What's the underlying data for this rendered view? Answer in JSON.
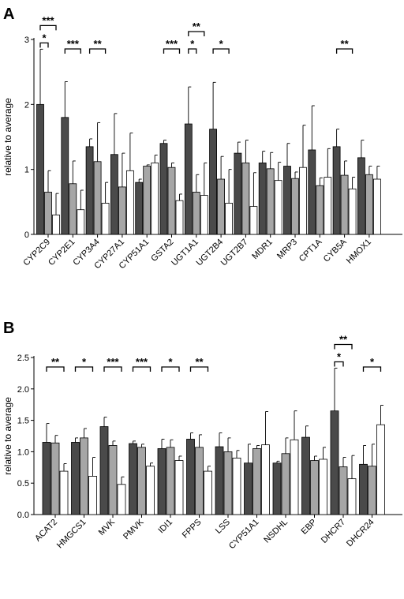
{
  "colors": {
    "series_1": "#4a4a4a",
    "series_2": "#a6a6a6",
    "series_3": "#ffffff",
    "axis": "#000000"
  },
  "chart_data": [
    {
      "type": "bar",
      "panel": "A",
      "ylabel": "relative to average",
      "ylim": [
        0,
        3
      ],
      "yticks": [
        0,
        1,
        2,
        3
      ],
      "grid": false,
      "categories": [
        "CYP2C9",
        "CYP2E1",
        "CYP3A4",
        "CYP27A1",
        "CYP51A1",
        "GSTA2",
        "UGT1A1",
        "UGT2B4",
        "UGT2B7",
        "MDR1",
        "MRP3",
        "CPT1A",
        "CYB5A",
        "HMOX1"
      ],
      "series": [
        {
          "values": [
            2.0,
            1.8,
            1.35,
            1.23,
            0.8,
            1.4,
            1.7,
            1.62,
            1.25,
            1.1,
            1.05,
            1.3,
            1.35,
            1.18
          ],
          "errors": [
            0.85,
            0.55,
            0.12,
            0.63,
            0.05,
            0.05,
            0.57,
            0.72,
            0.17,
            0.18,
            0.35,
            0.68,
            0.27,
            0.27
          ]
        },
        {
          "values": [
            0.65,
            0.78,
            1.12,
            0.73,
            1.05,
            1.03,
            0.65,
            0.85,
            1.1,
            1.01,
            0.86,
            0.75,
            0.91,
            0.92
          ],
          "errors": [
            0.33,
            0.35,
            0.6,
            0.52,
            0.02,
            0.07,
            0.27,
            0.35,
            0.35,
            0.25,
            0.1,
            0.12,
            0.22,
            0.13
          ]
        },
        {
          "values": [
            0.3,
            0.38,
            0.48,
            0.98,
            1.1,
            0.52,
            0.6,
            0.48,
            0.43,
            0.83,
            1.03,
            0.88,
            0.7,
            0.85
          ],
          "errors": [
            0.33,
            0.3,
            0.32,
            0.58,
            0.12,
            0.1,
            0.5,
            0.52,
            0.52,
            0.28,
            0.65,
            0.44,
            0.18,
            0.2
          ]
        }
      ],
      "significance": [
        {
          "category_index": 0,
          "from_series": 0,
          "to_series": 1,
          "label": "*",
          "level": 0
        },
        {
          "category_index": 0,
          "from_series": 0,
          "to_series": 2,
          "label": "***",
          "level": 1
        },
        {
          "category_index": 1,
          "from_series": 0,
          "to_series": 2,
          "label": "***",
          "level": 0
        },
        {
          "category_index": 2,
          "from_series": 0,
          "to_series": 2,
          "label": "**",
          "level": 0
        },
        {
          "category_index": 5,
          "from_series": 0,
          "to_series": 2,
          "label": "***",
          "level": 0
        },
        {
          "category_index": 6,
          "from_series": 0,
          "to_series": 1,
          "label": "*",
          "level": 0
        },
        {
          "category_index": 6,
          "from_series": 0,
          "to_series": 2,
          "label": "**",
          "level": 1
        },
        {
          "category_index": 7,
          "from_series": 0,
          "to_series": 2,
          "label": "*",
          "level": 0
        },
        {
          "category_index": 12,
          "from_series": 0,
          "to_series": 2,
          "label": "**",
          "level": 0
        }
      ]
    },
    {
      "type": "bar",
      "panel": "B",
      "ylabel": "relative to average",
      "ylim": [
        0,
        2.5
      ],
      "yticks": [
        0.0,
        0.5,
        1.0,
        1.5,
        2.0,
        2.5
      ],
      "grid": false,
      "categories": [
        "ACAT2",
        "HMGCS1",
        "MVK",
        "PMVK",
        "IDI1",
        "FPPS",
        "LSS",
        "CYP51A1",
        "NSDHL",
        "EBP",
        "DHCR7",
        "DHCR24"
      ],
      "series": [
        {
          "values": [
            1.15,
            1.15,
            1.4,
            1.13,
            1.05,
            1.2,
            1.08,
            0.82,
            0.82,
            1.23,
            1.65,
            0.8
          ],
          "errors": [
            0.3,
            0.07,
            0.15,
            0.04,
            0.15,
            0.1,
            0.22,
            0.3,
            0.03,
            0.18,
            0.68,
            0.3
          ]
        },
        {
          "values": [
            1.14,
            1.22,
            1.1,
            1.07,
            1.07,
            1.07,
            1.0,
            1.05,
            0.97,
            0.86,
            0.76,
            0.77
          ],
          "errors": [
            0.12,
            0.15,
            0.07,
            0.05,
            0.12,
            0.2,
            0.22,
            0.05,
            0.25,
            0.07,
            0.15,
            0.35
          ]
        },
        {
          "values": [
            0.69,
            0.61,
            0.48,
            0.77,
            0.86,
            0.69,
            0.9,
            1.11,
            1.19,
            0.88,
            0.57,
            1.43
          ],
          "errors": [
            0.12,
            0.3,
            0.12,
            0.05,
            0.07,
            0.08,
            0.12,
            0.53,
            0.46,
            0.19,
            0.37,
            0.31
          ]
        }
      ],
      "significance": [
        {
          "category_index": 0,
          "from_series": 0,
          "to_series": 2,
          "label": "**",
          "level": 0
        },
        {
          "category_index": 1,
          "from_series": 0,
          "to_series": 2,
          "label": "*",
          "level": 0
        },
        {
          "category_index": 2,
          "from_series": 0,
          "to_series": 2,
          "label": "***",
          "level": 0
        },
        {
          "category_index": 3,
          "from_series": 0,
          "to_series": 2,
          "label": "***",
          "level": 0
        },
        {
          "category_index": 4,
          "from_series": 0,
          "to_series": 2,
          "label": "*",
          "level": 0
        },
        {
          "category_index": 5,
          "from_series": 0,
          "to_series": 2,
          "label": "**",
          "level": 0
        },
        {
          "category_index": 10,
          "from_series": 0,
          "to_series": 1,
          "label": "*",
          "level": 0
        },
        {
          "category_index": 10,
          "from_series": 0,
          "to_series": 2,
          "label": "**",
          "level": 1
        },
        {
          "category_index": 11,
          "from_series": 0,
          "to_series": 2,
          "label": "*",
          "level": 0
        }
      ]
    }
  ]
}
